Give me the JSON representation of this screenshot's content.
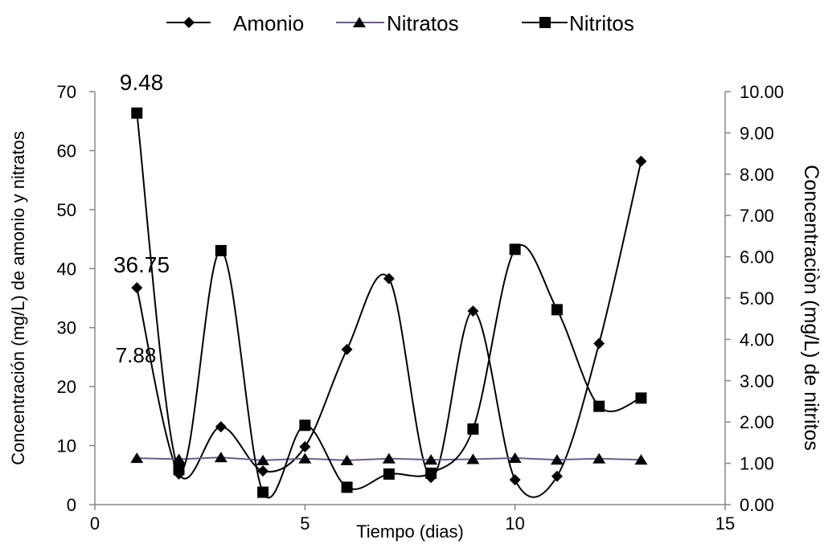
{
  "chart_data": {
    "type": "line",
    "xlabel": "Tiempo (dias)",
    "ylabel_left": "Concentración (mg/L) de amonio y nitratos",
    "ylabel_right": "Concentraciòn (mg/L) de nitritos",
    "xlim": [
      0,
      15
    ],
    "ylim_left": [
      0,
      70
    ],
    "ylim_right": [
      0,
      10
    ],
    "x_ticks": [
      "0",
      "5",
      "10",
      "15"
    ],
    "y_left_ticks": [
      "0",
      "10",
      "20",
      "30",
      "40",
      "50",
      "60",
      "70"
    ],
    "y_right_ticks": [
      "0.00",
      "1.00",
      "2.00",
      "3.00",
      "4.00",
      "5.00",
      "6.00",
      "7.00",
      "8.00",
      "9.00",
      "10.00"
    ],
    "grid": false,
    "legend_position": "top",
    "series": [
      {
        "name": "Amonio",
        "axis": "left",
        "marker": "diamond",
        "smooth": true,
        "color": "#000000",
        "x": [
          1,
          2,
          3,
          4,
          5,
          6,
          7,
          8,
          9,
          10,
          11,
          12,
          13
        ],
        "values": [
          36.75,
          5.2,
          13.2,
          5.7,
          9.8,
          26.3,
          38.3,
          4.6,
          32.8,
          4.2,
          4.8,
          27.3,
          58.2
        ]
      },
      {
        "name": "Nitratos",
        "axis": "left",
        "marker": "triangle",
        "smooth": false,
        "color": "#000000",
        "line_color": "#6b5b8e",
        "x": [
          1,
          2,
          3,
          4,
          5,
          6,
          7,
          8,
          9,
          10,
          11,
          12,
          13
        ],
        "values": [
          7.88,
          7.7,
          8.0,
          7.5,
          7.8,
          7.5,
          7.8,
          7.6,
          7.7,
          7.9,
          7.6,
          7.8,
          7.6
        ]
      },
      {
        "name": "Nitritos",
        "axis": "right",
        "marker": "square",
        "smooth": true,
        "color": "#000000",
        "x": [
          1,
          2,
          3,
          4,
          5,
          6,
          7,
          8,
          9,
          10,
          11,
          12,
          13
        ],
        "values": [
          9.48,
          0.85,
          6.15,
          0.3,
          1.92,
          0.42,
          0.74,
          0.76,
          1.83,
          6.18,
          4.72,
          2.38,
          2.58
        ]
      }
    ],
    "annotations": [
      {
        "text": "9.48",
        "series": 2,
        "index": 0
      },
      {
        "text": "36.75",
        "series": 0,
        "index": 0
      },
      {
        "text": "7.88",
        "series": 1,
        "index": 0
      }
    ]
  }
}
